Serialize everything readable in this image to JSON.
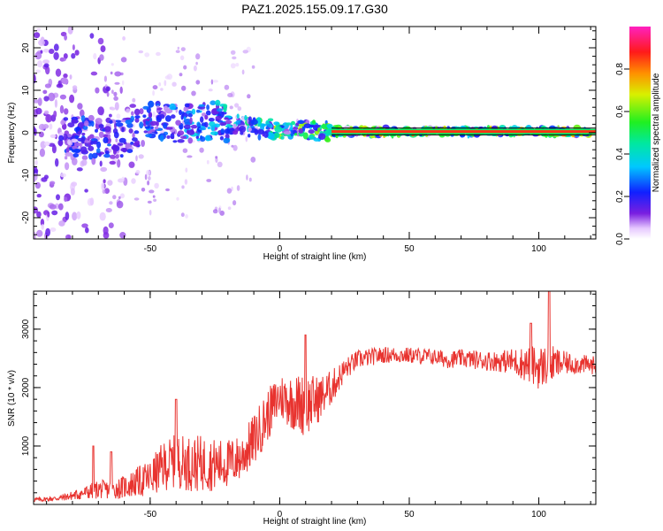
{
  "chart_data": [
    {
      "type": "heatmap",
      "title": "PAZ1.2025.155.09.17.G30",
      "xlabel": "Height of straight line (km)",
      "ylabel": "Frequency (Hz)",
      "xlim": [
        -95,
        122
      ],
      "ylim": [
        -25,
        25
      ],
      "xticks": [
        -50,
        0,
        50,
        100
      ],
      "xtick_labels": [
        "-50",
        "0",
        "50",
        "100"
      ],
      "yticks": [
        -20,
        -10,
        0,
        10,
        20
      ],
      "ytick_labels": [
        "-20",
        "-10",
        "0",
        "10",
        "20"
      ],
      "colorbar": {
        "label": "Normalized spectral amplitude",
        "range": [
          0,
          1
        ],
        "ticks": [
          0.0,
          0.2,
          0.4,
          0.6,
          0.8
        ],
        "tick_labels": [
          "0.0",
          "0.2",
          "0.4",
          "0.6",
          "0.8"
        ],
        "colormap": "rainbow (white-violet-blue-cyan-green-yellow-red-magenta)"
      },
      "ridge": {
        "description": "dominant spectral line near 0 Hz",
        "x": [
          -85,
          -70,
          -60,
          -50,
          -40,
          -30,
          -20,
          -10,
          0,
          10,
          20,
          40,
          60,
          80,
          100,
          120
        ],
        "y": [
          -0.5,
          -1.5,
          -1.0,
          2.5,
          2.0,
          3.0,
          2.2,
          1.0,
          0.8,
          0.6,
          0.3,
          0.3,
          0.3,
          0.3,
          0.3,
          0.3
        ],
        "amplitude": [
          0.25,
          0.3,
          0.3,
          0.35,
          0.35,
          0.4,
          0.5,
          0.6,
          0.7,
          0.75,
          0.8,
          0.85,
          0.85,
          0.85,
          0.85,
          0.85
        ]
      }
    },
    {
      "type": "line",
      "xlabel": "Height of straight line (km)",
      "ylabel": "SNR (10 * v/v)",
      "xlim": [
        -95,
        122
      ],
      "ylim": [
        0,
        3650
      ],
      "xticks": [
        -50,
        0,
        50,
        100
      ],
      "xtick_labels": [
        "-50",
        "0",
        "50",
        "100"
      ],
      "yticks": [
        1000,
        2000,
        3000
      ],
      "ytick_labels": [
        "1000",
        "2000",
        "3000"
      ],
      "color": "#e8332f",
      "series": [
        {
          "x": [
            -95,
            -90,
            -85,
            -80,
            -75,
            -70,
            -65,
            -60,
            -55,
            -50,
            -45,
            -40,
            -35,
            -30,
            -25,
            -20,
            -15,
            -10,
            -5,
            0,
            5,
            10,
            15,
            20,
            25,
            30,
            35,
            40,
            45,
            50,
            55,
            60,
            65,
            70,
            75,
            80,
            85,
            90,
            95,
            100,
            105,
            110,
            115,
            122
          ],
          "values": [
            80,
            90,
            110,
            150,
            200,
            260,
            250,
            300,
            380,
            450,
            650,
            750,
            700,
            700,
            680,
            700,
            800,
            1100,
            1500,
            1850,
            1750,
            1700,
            1800,
            2000,
            2300,
            2480,
            2520,
            2560,
            2560,
            2550,
            2540,
            2520,
            2480,
            2500,
            2480,
            2460,
            2450,
            2450,
            2400,
            2350,
            2400,
            2420,
            2400,
            2380
          ],
          "noise": [
            40,
            40,
            50,
            80,
            120,
            160,
            160,
            200,
            260,
            320,
            420,
            460,
            480,
            480,
            450,
            420,
            400,
            450,
            450,
            400,
            480,
            550,
            400,
            300,
            200,
            160,
            150,
            140,
            140,
            140,
            140,
            140,
            150,
            150,
            160,
            170,
            180,
            230,
            300,
            380,
            320,
            200,
            170,
            160
          ]
        }
      ],
      "peaks": [
        {
          "x": -72,
          "y": 1000
        },
        {
          "x": -65,
          "y": 900
        },
        {
          "x": -40,
          "y": 1800
        },
        {
          "x": 10,
          "y": 2900
        },
        {
          "x": 97,
          "y": 3100
        },
        {
          "x": 104,
          "y": 3650
        }
      ]
    }
  ]
}
